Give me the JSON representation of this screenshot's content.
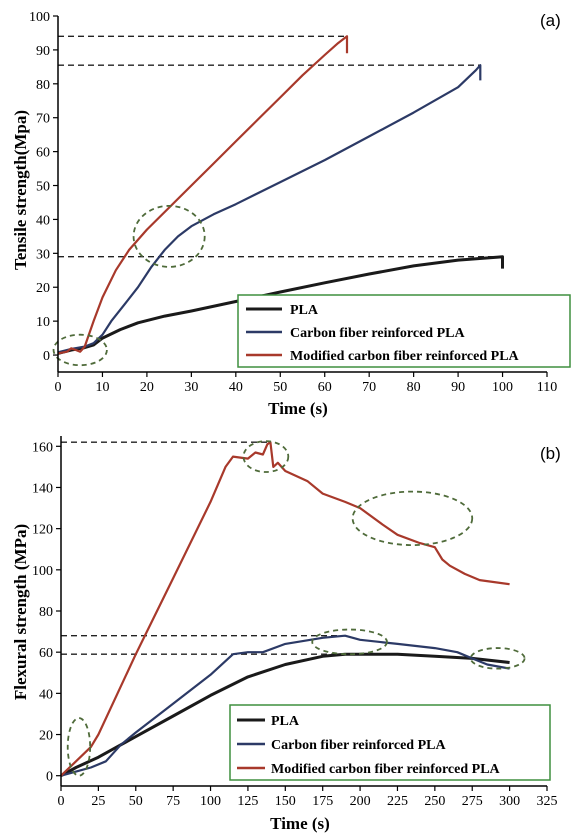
{
  "colors": {
    "PLA": "#1a1a1a",
    "Carbon fiber reinforced PLA": "#2c3a66",
    "Modified carbon fiber reinforced PLA": "#a8392b",
    "ellipse": "#4f6b3a",
    "legend_border": "#3f8f3f"
  },
  "chart_data": [
    {
      "type": "line",
      "panel_label": "(a)",
      "xlabel": "Time (s)",
      "ylabel": "Tensile strength(Mpa)",
      "xlim": [
        0,
        110
      ],
      "ylim": [
        -5,
        100
      ],
      "xticks": [
        0,
        10,
        20,
        30,
        40,
        50,
        60,
        70,
        80,
        90,
        100,
        110
      ],
      "yticks": [
        0,
        10,
        20,
        30,
        40,
        50,
        60,
        70,
        80,
        90,
        100
      ],
      "legend_position": "bottom-right",
      "series": [
        {
          "name": "PLA",
          "x": [
            0,
            3,
            6,
            8,
            10,
            14,
            18,
            24,
            30,
            40,
            50,
            60,
            70,
            80,
            90,
            96,
            99,
            100,
            100
          ],
          "y": [
            0.5,
            1.5,
            2.2,
            3,
            5,
            7.5,
            9.5,
            11.5,
            13,
            15.8,
            18.6,
            21.3,
            23.9,
            26.3,
            28,
            28.6,
            28.9,
            29,
            25.5
          ]
        },
        {
          "name": "Carbon fiber reinforced PLA",
          "x": [
            0,
            3,
            6,
            8,
            10,
            12,
            15,
            18,
            21,
            24,
            27,
            30,
            35,
            40,
            50,
            60,
            70,
            80,
            90,
            94,
            95,
            95
          ],
          "y": [
            0.8,
            1.8,
            2.5,
            3.5,
            6,
            10,
            15,
            20,
            26,
            31,
            35,
            38,
            41.5,
            44.5,
            51,
            57.5,
            64.5,
            71.5,
            79,
            84,
            85.5,
            81
          ]
        },
        {
          "name": "Modified carbon fiber reinforced PLA",
          "x": [
            0,
            2,
            3,
            4,
            5,
            6,
            8,
            10,
            13,
            16,
            20,
            25,
            30,
            35,
            40,
            45,
            50,
            55,
            60,
            63,
            65,
            65
          ],
          "y": [
            0.5,
            1,
            2,
            1.5,
            1,
            2.5,
            10,
            17,
            25,
            31,
            37,
            43.5,
            50,
            56.5,
            63,
            69.5,
            76,
            82.5,
            88.5,
            92,
            94,
            89
          ]
        }
      ],
      "reference_lines": [
        94,
        85.5,
        29
      ],
      "highlights": [
        {
          "x": 5,
          "y": 1.5,
          "rx": 6,
          "ry": 4.5
        },
        {
          "x": 25,
          "y": 35,
          "rx": 8,
          "ry": 9
        }
      ]
    },
    {
      "type": "line",
      "panel_label": "(b)",
      "xlabel": "Time (s)",
      "ylabel": "Flexural strength (MPa)",
      "xlim": [
        0,
        325
      ],
      "ylim": [
        -5,
        165
      ],
      "xticks": [
        0,
        25,
        50,
        75,
        100,
        125,
        150,
        175,
        200,
        225,
        250,
        275,
        300,
        325
      ],
      "yticks": [
        0,
        20,
        40,
        60,
        80,
        100,
        120,
        140,
        160
      ],
      "legend_position": "bottom-right",
      "series": [
        {
          "name": "PLA",
          "x": [
            0,
            10,
            25,
            40,
            50,
            75,
            100,
            125,
            150,
            175,
            190,
            200,
            225,
            250,
            275,
            300
          ],
          "y": [
            0,
            4,
            9,
            15,
            19,
            29,
            39,
            48,
            54,
            58,
            59,
            59,
            59,
            58,
            57,
            55
          ]
        },
        {
          "name": "Carbon fiber reinforced PLA",
          "x": [
            0,
            10,
            20,
            30,
            40,
            50,
            75,
            100,
            115,
            125,
            135,
            150,
            175,
            190,
            200,
            225,
            250,
            265,
            275,
            285,
            300
          ],
          "y": [
            0,
            2,
            4,
            7,
            15,
            21,
            35,
            49,
            59,
            60,
            60,
            64,
            67,
            68,
            66,
            64,
            62,
            60,
            57,
            54,
            52
          ]
        },
        {
          "name": "Modified carbon fiber reinforced PLA",
          "x": [
            0,
            10,
            20,
            25,
            50,
            75,
            100,
            110,
            115,
            125,
            130,
            135,
            138,
            140,
            142,
            145,
            150,
            165,
            175,
            190,
            200,
            215,
            225,
            240,
            250,
            255,
            260,
            270,
            280,
            300
          ],
          "y": [
            0,
            7,
            14,
            20,
            59,
            96,
            133,
            150,
            155,
            154,
            157,
            156,
            161,
            162,
            150,
            152,
            148,
            143,
            137,
            133,
            130,
            122,
            117,
            113,
            111,
            105,
            102,
            98,
            95,
            93
          ]
        }
      ],
      "reference_lines": [
        162,
        68,
        59
      ],
      "highlights": [
        {
          "x": 12,
          "y": 14,
          "rx": 7.5,
          "ry": 14
        },
        {
          "x": 137,
          "y": 155,
          "rx": 15,
          "ry": 7.5
        },
        {
          "x": 235,
          "y": 125,
          "rx": 40,
          "ry": 13
        },
        {
          "x": 193,
          "y": 65,
          "rx": 25,
          "ry": 6
        },
        {
          "x": 292,
          "y": 57,
          "rx": 18,
          "ry": 5
        }
      ]
    }
  ]
}
